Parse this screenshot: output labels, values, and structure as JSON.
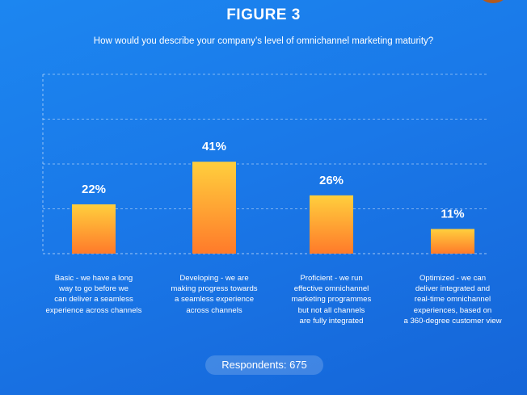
{
  "figure_label": "FIGURE 3",
  "question": "How would you describe your company’s level of omnichannel marketing maturity?",
  "respondents": "Respondents: 675",
  "colors": {
    "background": "#1a78e8",
    "bar_top": "#ffcf3d",
    "bar_bottom": "#ff7a2a",
    "gridline": "#ffffff"
  },
  "chart_data": {
    "type": "bar",
    "categories": [
      "Basic - we have a long way to go before we can deliver a seamless experience across channels",
      "Developing - we are making progress towards a seamless experience across channels",
      "Proficient - we run effective omnichannel marketing programmes but not all channels are fully integrated",
      "Optimized - we can deliver integrated and real-time omnichannel experiences, based on a 360-degree customer view"
    ],
    "category_lines": [
      [
        "Basic - we have a long",
        "way to go before we",
        "can deliver a seamless",
        "experience across channels"
      ],
      [
        "Developing - we are",
        "making progress towards",
        "a seamless experience",
        "across channels"
      ],
      [
        "Proficient - we run",
        "effective omnichannel",
        "marketing programmes",
        "but not all channels",
        "are fully integrated"
      ],
      [
        "Optimized - we can",
        "deliver integrated and",
        "real-time omnichannel",
        "experiences, based on",
        "a 360-degree customer view"
      ]
    ],
    "values": [
      22,
      41,
      26,
      11
    ],
    "value_labels": [
      "22%",
      "41%",
      "26%",
      "11%"
    ],
    "unit": "%",
    "ylim": [
      0,
      80
    ],
    "grid": true,
    "legend": "none"
  }
}
